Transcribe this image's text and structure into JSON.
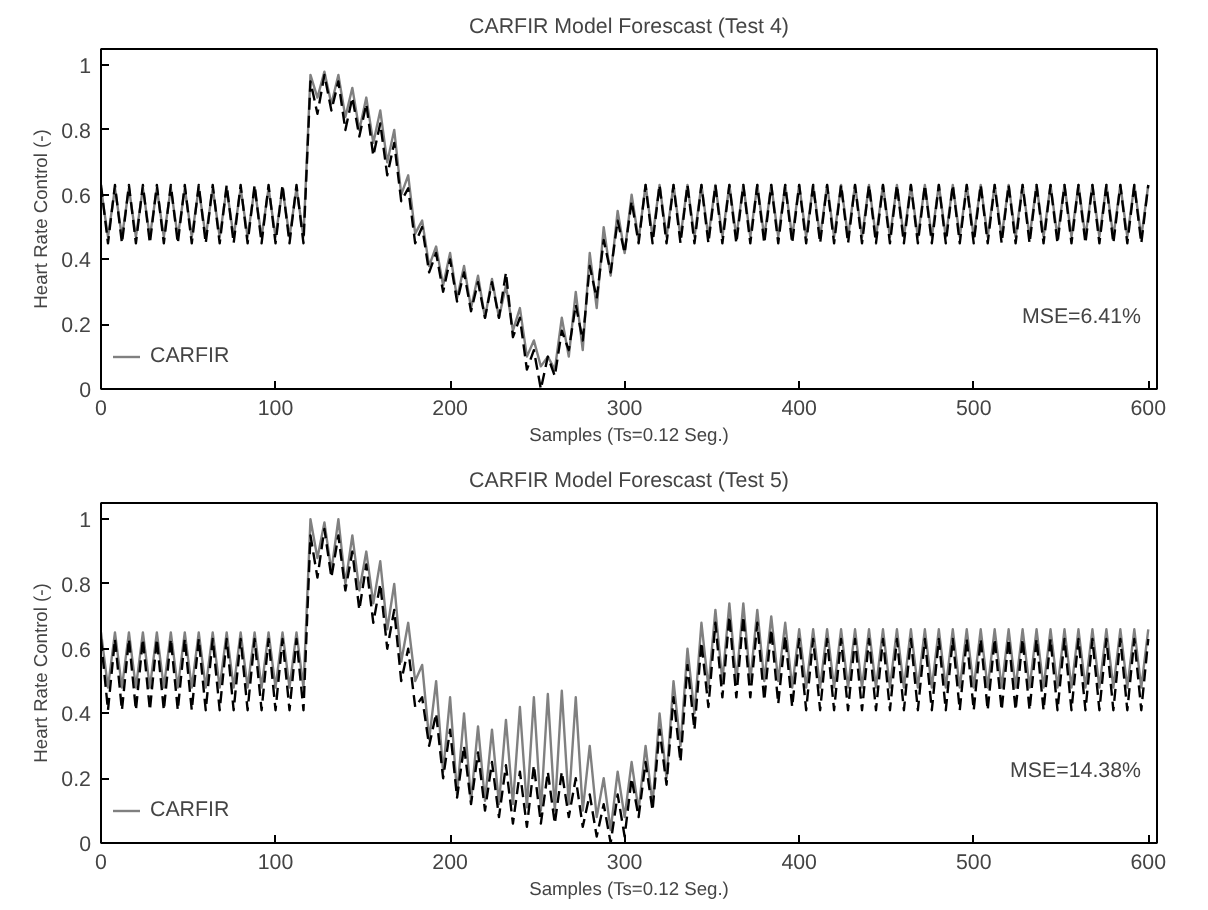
{
  "chart_data": [
    {
      "type": "line",
      "title": "CARFIR Model Forescast (Test 4)",
      "xlabel": "Samples (Ts=0.12 Seg.)",
      "ylabel": "Heart Rate Control (-)",
      "xlim": [
        0,
        605
      ],
      "ylim": [
        0,
        1.05
      ],
      "xticks": [
        0,
        100,
        200,
        300,
        400,
        500,
        600
      ],
      "yticks": [
        0,
        0.2,
        0.4,
        0.6,
        0.8,
        1
      ],
      "grid": false,
      "legend": "bottom left",
      "marker": "none",
      "annotations": [
        "MSE=6.41%"
      ],
      "x": [
        0,
        4,
        8,
        12,
        16,
        20,
        24,
        28,
        32,
        36,
        40,
        44,
        48,
        52,
        56,
        60,
        64,
        68,
        72,
        76,
        80,
        84,
        88,
        92,
        96,
        100,
        104,
        108,
        112,
        116,
        120,
        124,
        128,
        132,
        136,
        140,
        144,
        148,
        152,
        156,
        160,
        164,
        168,
        172,
        176,
        180,
        184,
        188,
        192,
        196,
        200,
        204,
        208,
        212,
        216,
        220,
        224,
        228,
        232,
        236,
        240,
        244,
        248,
        252,
        256,
        260,
        264,
        268,
        272,
        276,
        280,
        284,
        288,
        292,
        296,
        300,
        304,
        308,
        312,
        316,
        320,
        324,
        328,
        332,
        336,
        340,
        344,
        348,
        352,
        356,
        360,
        364,
        368,
        372,
        376,
        380,
        384,
        388,
        392,
        396,
        400,
        404,
        408,
        412,
        416,
        420,
        424,
        428,
        432,
        436,
        440,
        444,
        448,
        452,
        456,
        460,
        464,
        468,
        472,
        476,
        480,
        484,
        488,
        492,
        496,
        500,
        504,
        508,
        512,
        516,
        520,
        524,
        528,
        532,
        536,
        540,
        544,
        548,
        552,
        556,
        560,
        564,
        568,
        572,
        576,
        580,
        584,
        588,
        592,
        596,
        600
      ],
      "series": [
        {
          "name": "CARFIR",
          "color": "#808080",
          "line_style": "solid",
          "values": [
            0.62,
            0.47,
            0.62,
            0.47,
            0.62,
            0.47,
            0.62,
            0.47,
            0.62,
            0.47,
            0.62,
            0.47,
            0.62,
            0.47,
            0.62,
            0.47,
            0.62,
            0.47,
            0.62,
            0.47,
            0.62,
            0.47,
            0.62,
            0.47,
            0.62,
            0.47,
            0.62,
            0.47,
            0.62,
            0.47,
            0.97,
            0.9,
            0.98,
            0.88,
            0.97,
            0.84,
            0.93,
            0.8,
            0.9,
            0.76,
            0.86,
            0.7,
            0.8,
            0.6,
            0.66,
            0.48,
            0.52,
            0.38,
            0.44,
            0.32,
            0.42,
            0.28,
            0.38,
            0.25,
            0.35,
            0.22,
            0.34,
            0.22,
            0.32,
            0.18,
            0.25,
            0.1,
            0.15,
            0.07,
            0.1,
            0.06,
            0.22,
            0.1,
            0.3,
            0.12,
            0.42,
            0.25,
            0.5,
            0.35,
            0.55,
            0.42,
            0.6,
            0.46,
            0.63,
            0.47,
            0.63,
            0.47,
            0.63,
            0.47,
            0.63,
            0.47,
            0.63,
            0.47,
            0.63,
            0.47,
            0.63,
            0.47,
            0.63,
            0.47,
            0.63,
            0.47,
            0.63,
            0.47,
            0.63,
            0.47,
            0.63,
            0.47,
            0.63,
            0.47,
            0.63,
            0.47,
            0.63,
            0.47,
            0.63,
            0.47,
            0.63,
            0.47,
            0.63,
            0.47,
            0.63,
            0.47,
            0.63,
            0.47,
            0.63,
            0.47,
            0.63,
            0.47,
            0.63,
            0.47,
            0.63,
            0.47,
            0.63,
            0.47,
            0.63,
            0.47,
            0.63,
            0.47,
            0.63,
            0.47,
            0.63,
            0.47,
            0.63,
            0.47,
            0.63,
            0.47,
            0.63,
            0.47,
            0.63,
            0.47,
            0.63,
            0.47,
            0.63,
            0.47,
            0.63,
            0.47,
            0.63
          ]
        },
        {
          "color": "#000000",
          "line_style": "dashed",
          "values": [
            0.63,
            0.45,
            0.63,
            0.45,
            0.63,
            0.45,
            0.63,
            0.45,
            0.63,
            0.45,
            0.63,
            0.45,
            0.63,
            0.45,
            0.63,
            0.45,
            0.63,
            0.45,
            0.63,
            0.45,
            0.63,
            0.45,
            0.63,
            0.45,
            0.63,
            0.45,
            0.63,
            0.45,
            0.63,
            0.45,
            0.95,
            0.85,
            0.97,
            0.86,
            0.95,
            0.8,
            0.9,
            0.78,
            0.88,
            0.72,
            0.82,
            0.66,
            0.76,
            0.58,
            0.62,
            0.45,
            0.5,
            0.36,
            0.42,
            0.3,
            0.4,
            0.27,
            0.36,
            0.24,
            0.33,
            0.22,
            0.33,
            0.22,
            0.36,
            0.16,
            0.22,
            0.06,
            0.12,
            0,
            0.1,
            0.04,
            0.18,
            0.12,
            0.26,
            0.15,
            0.38,
            0.28,
            0.46,
            0.36,
            0.52,
            0.42,
            0.58,
            0.45,
            0.63,
            0.45,
            0.63,
            0.45,
            0.63,
            0.45,
            0.63,
            0.45,
            0.63,
            0.45,
            0.63,
            0.45,
            0.63,
            0.45,
            0.63,
            0.45,
            0.63,
            0.45,
            0.63,
            0.45,
            0.63,
            0.45,
            0.63,
            0.45,
            0.63,
            0.45,
            0.63,
            0.45,
            0.63,
            0.45,
            0.63,
            0.45,
            0.63,
            0.45,
            0.63,
            0.45,
            0.63,
            0.45,
            0.63,
            0.45,
            0.63,
            0.45,
            0.63,
            0.45,
            0.63,
            0.45,
            0.63,
            0.45,
            0.63,
            0.45,
            0.63,
            0.45,
            0.63,
            0.45,
            0.63,
            0.45,
            0.63,
            0.45,
            0.63,
            0.45,
            0.63,
            0.45,
            0.63,
            0.45,
            0.63,
            0.45,
            0.63,
            0.45,
            0.63,
            0.45,
            0.63,
            0.45,
            0.63
          ]
        }
      ]
    },
    {
      "type": "line",
      "title": "CARFIR Model Forescast (Test 5)",
      "xlabel": "Samples (Ts=0.12 Seg.)",
      "ylabel": "Heart Rate Control (-)",
      "xlim": [
        0,
        605
      ],
      "ylim": [
        0,
        1.05
      ],
      "xticks": [
        0,
        100,
        200,
        300,
        400,
        500,
        600
      ],
      "yticks": [
        0,
        0.2,
        0.4,
        0.6,
        0.8,
        1
      ],
      "grid": false,
      "legend": "bottom left",
      "marker": "none",
      "annotations": [
        "MSE=14.38%"
      ],
      "x": [
        0,
        4,
        8,
        12,
        16,
        20,
        24,
        28,
        32,
        36,
        40,
        44,
        48,
        52,
        56,
        60,
        64,
        68,
        72,
        76,
        80,
        84,
        88,
        92,
        96,
        100,
        104,
        108,
        112,
        116,
        120,
        124,
        128,
        132,
        136,
        140,
        144,
        148,
        152,
        156,
        160,
        164,
        168,
        172,
        176,
        180,
        184,
        188,
        192,
        196,
        200,
        204,
        208,
        212,
        216,
        220,
        224,
        228,
        232,
        236,
        240,
        244,
        248,
        252,
        256,
        260,
        264,
        268,
        272,
        276,
        280,
        284,
        288,
        292,
        296,
        300,
        304,
        308,
        312,
        316,
        320,
        324,
        328,
        332,
        336,
        340,
        344,
        348,
        352,
        356,
        360,
        364,
        368,
        372,
        376,
        380,
        384,
        388,
        392,
        396,
        400,
        404,
        408,
        412,
        416,
        420,
        424,
        428,
        432,
        436,
        440,
        444,
        448,
        452,
        456,
        460,
        464,
        468,
        472,
        476,
        480,
        484,
        488,
        492,
        496,
        500,
        504,
        508,
        512,
        516,
        520,
        524,
        528,
        532,
        536,
        540,
        544,
        548,
        552,
        556,
        560,
        564,
        568,
        572,
        576,
        580,
        584,
        588,
        592,
        596,
        600
      ],
      "series": [
        {
          "name": "CARFIR",
          "color": "#808080",
          "line_style": "solid",
          "values": [
            0.65,
            0.48,
            0.65,
            0.48,
            0.65,
            0.48,
            0.65,
            0.48,
            0.65,
            0.48,
            0.65,
            0.48,
            0.65,
            0.48,
            0.65,
            0.48,
            0.65,
            0.48,
            0.65,
            0.48,
            0.65,
            0.48,
            0.65,
            0.48,
            0.65,
            0.48,
            0.65,
            0.48,
            0.65,
            0.48,
            1,
            0.88,
            0.99,
            0.84,
            1,
            0.8,
            0.95,
            0.78,
            0.9,
            0.74,
            0.87,
            0.66,
            0.8,
            0.56,
            0.68,
            0.5,
            0.55,
            0.32,
            0.5,
            0.22,
            0.45,
            0.15,
            0.4,
            0.13,
            0.36,
            0.13,
            0.35,
            0.12,
            0.38,
            0.12,
            0.42,
            0.11,
            0.45,
            0.1,
            0.46,
            0.1,
            0.47,
            0.12,
            0.45,
            0.1,
            0.3,
            0.08,
            0.2,
            0.04,
            0.22,
            0.08,
            0.25,
            0.1,
            0.3,
            0.12,
            0.4,
            0.2,
            0.5,
            0.3,
            0.6,
            0.4,
            0.68,
            0.48,
            0.72,
            0.5,
            0.74,
            0.5,
            0.74,
            0.5,
            0.72,
            0.5,
            0.7,
            0.5,
            0.68,
            0.48,
            0.66,
            0.48,
            0.66,
            0.48,
            0.66,
            0.48,
            0.66,
            0.48,
            0.66,
            0.48,
            0.66,
            0.48,
            0.66,
            0.48,
            0.66,
            0.48,
            0.66,
            0.48,
            0.66,
            0.48,
            0.66,
            0.48,
            0.66,
            0.48,
            0.66,
            0.48,
            0.66,
            0.48,
            0.66,
            0.48,
            0.66,
            0.48,
            0.66,
            0.48,
            0.66,
            0.48,
            0.66,
            0.48,
            0.66,
            0.48,
            0.66,
            0.48,
            0.66,
            0.48,
            0.66,
            0.48,
            0.66,
            0.48,
            0.66,
            0.48,
            0.66
          ]
        },
        {
          "color": "#000000",
          "line_style": "dashed",
          "values": [
            0.63,
            0.41,
            0.63,
            0.41,
            0.63,
            0.41,
            0.63,
            0.41,
            0.63,
            0.41,
            0.63,
            0.41,
            0.63,
            0.41,
            0.63,
            0.41,
            0.63,
            0.41,
            0.63,
            0.41,
            0.63,
            0.41,
            0.63,
            0.41,
            0.63,
            0.41,
            0.63,
            0.41,
            0.63,
            0.41,
            0.95,
            0.82,
            0.97,
            0.82,
            0.95,
            0.78,
            0.9,
            0.72,
            0.86,
            0.68,
            0.8,
            0.6,
            0.72,
            0.5,
            0.6,
            0.42,
            0.45,
            0.3,
            0.4,
            0.2,
            0.35,
            0.14,
            0.3,
            0.12,
            0.28,
            0.1,
            0.25,
            0.08,
            0.24,
            0.06,
            0.22,
            0.05,
            0.24,
            0.06,
            0.22,
            0.06,
            0.22,
            0.08,
            0.2,
            0.05,
            0.15,
            0.02,
            0.12,
            0,
            0.15,
            0.02,
            0.2,
            0.08,
            0.25,
            0.1,
            0.35,
            0.18,
            0.45,
            0.25,
            0.55,
            0.35,
            0.62,
            0.42,
            0.68,
            0.45,
            0.7,
            0.45,
            0.7,
            0.45,
            0.68,
            0.44,
            0.66,
            0.43,
            0.64,
            0.42,
            0.63,
            0.41,
            0.63,
            0.41,
            0.63,
            0.41,
            0.63,
            0.41,
            0.63,
            0.41,
            0.63,
            0.41,
            0.63,
            0.41,
            0.63,
            0.41,
            0.63,
            0.41,
            0.63,
            0.41,
            0.63,
            0.41,
            0.63,
            0.41,
            0.63,
            0.41,
            0.63,
            0.41,
            0.63,
            0.41,
            0.63,
            0.41,
            0.63,
            0.41,
            0.63,
            0.41,
            0.63,
            0.41,
            0.63,
            0.41,
            0.63,
            0.41,
            0.63,
            0.41,
            0.63,
            0.41,
            0.63,
            0.41,
            0.63,
            0.41,
            0.63
          ]
        }
      ]
    }
  ]
}
